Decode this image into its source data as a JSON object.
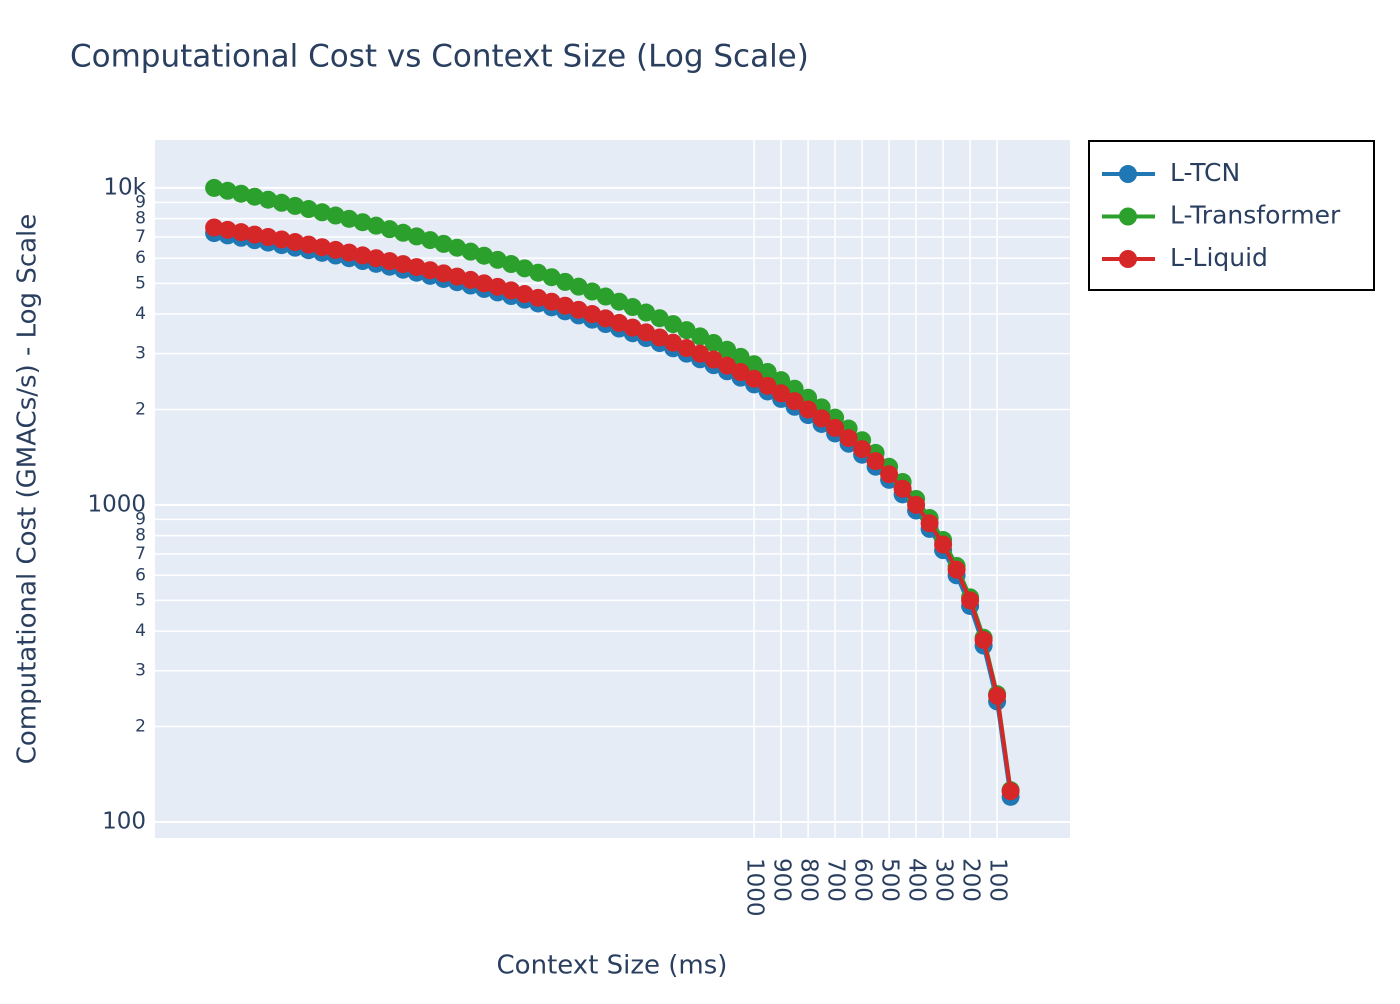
{
  "chart_data": {
    "type": "line",
    "title": "Computational Cost vs Context Size (Log Scale)",
    "x_label": "Context Size (ms)",
    "y_label": "Computational Cost (GMACs/s) - Log Scale",
    "x": [
      50,
      100,
      150,
      200,
      250,
      300,
      350,
      400,
      450,
      500,
      550,
      600,
      650,
      700,
      750,
      800,
      850,
      900,
      950,
      1000,
      1050,
      1100,
      1150,
      1200,
      1250,
      1300,
      1350,
      1400,
      1450,
      1500,
      1550,
      1600,
      1650,
      1700,
      1750,
      1800,
      1850,
      1900,
      1950,
      2000,
      2050,
      2100,
      2150,
      2200,
      2250,
      2300,
      2350,
      2400,
      2450,
      2500,
      2550,
      2600,
      2650,
      2700,
      2750,
      2800,
      2850,
      2900,
      2950,
      3000
    ],
    "series": [
      {
        "name": "L-TCN",
        "color": "#1f77b4",
        "values": [
          120,
          240,
          360,
          480,
          600,
          720,
          840,
          960,
          1080,
          1200,
          1320,
          1440,
          1560,
          1680,
          1800,
          1920,
          2040,
          2160,
          2280,
          2400,
          2520,
          2640,
          2760,
          2880,
          3000,
          3120,
          3240,
          3360,
          3480,
          3600,
          3720,
          3840,
          3960,
          4080,
          4200,
          4320,
          4440,
          4560,
          4680,
          4800,
          4920,
          5040,
          5160,
          5280,
          5400,
          5520,
          5640,
          5760,
          5880,
          6000,
          6120,
          6240,
          6360,
          6480,
          6600,
          6720,
          6840,
          6960,
          7080,
          7200
        ]
      },
      {
        "name": "L-Transformer",
        "color": "#2ca02c",
        "values": [
          126,
          253,
          381,
          511,
          642,
          775,
          909,
          1044,
          1181,
          1319,
          1459,
          1600,
          1742,
          1886,
          2031,
          2178,
          2326,
          2475,
          2626,
          2778,
          2931,
          3086,
          3242,
          3400,
          3559,
          3719,
          3881,
          4044,
          4209,
          4375,
          4542,
          4711,
          4881,
          5053,
          5226,
          5400,
          5576,
          5753,
          5931,
          6111,
          6292,
          6475,
          6659,
          6844,
          7031,
          7219,
          7409,
          7600,
          7792,
          7986,
          8181,
          8378,
          8576,
          8775,
          8976,
          9178,
          9381,
          9586,
          9792,
          10000
        ]
      },
      {
        "name": "L-Liquid",
        "color": "#d62728",
        "values": [
          125,
          250,
          375,
          500,
          625,
          750,
          875,
          1000,
          1125,
          1250,
          1375,
          1500,
          1625,
          1750,
          1875,
          2000,
          2125,
          2250,
          2375,
          2500,
          2625,
          2750,
          2875,
          3000,
          3125,
          3250,
          3375,
          3500,
          3625,
          3750,
          3875,
          4000,
          4125,
          4250,
          4375,
          4500,
          4625,
          4750,
          4875,
          5000,
          5125,
          5250,
          5375,
          5500,
          5625,
          5750,
          5875,
          6000,
          6125,
          6250,
          6375,
          6500,
          6625,
          6750,
          6875,
          7000,
          7125,
          7250,
          7375,
          7500
        ]
      }
    ],
    "xlim": [
      3219,
      -170
    ],
    "xticks": [
      1000,
      900,
      800,
      700,
      600,
      500,
      400,
      300,
      200,
      100
    ],
    "ylim": [
      89,
      14160
    ],
    "ylog": true,
    "yticks": [
      100,
      {
        "value": 200,
        "label": "2"
      },
      {
        "value": 300,
        "label": "3"
      },
      {
        "value": 400,
        "label": "4"
      },
      {
        "value": 500,
        "label": "5"
      },
      {
        "value": 600,
        "label": "6"
      },
      {
        "value": 700,
        "label": "7"
      },
      {
        "value": 800,
        "label": "8"
      },
      {
        "value": 900,
        "label": "9"
      },
      1000,
      {
        "value": 2000,
        "label": "2"
      },
      {
        "value": 3000,
        "label": "3"
      },
      {
        "value": 4000,
        "label": "4"
      },
      {
        "value": 5000,
        "label": "5"
      },
      {
        "value": 6000,
        "label": "6"
      },
      {
        "value": 7000,
        "label": "7"
      },
      {
        "value": 8000,
        "label": "8"
      },
      {
        "value": 9000,
        "label": "9"
      },
      {
        "value": 10000,
        "label": "10k"
      }
    ],
    "grid": true,
    "legend": "outside-right"
  }
}
